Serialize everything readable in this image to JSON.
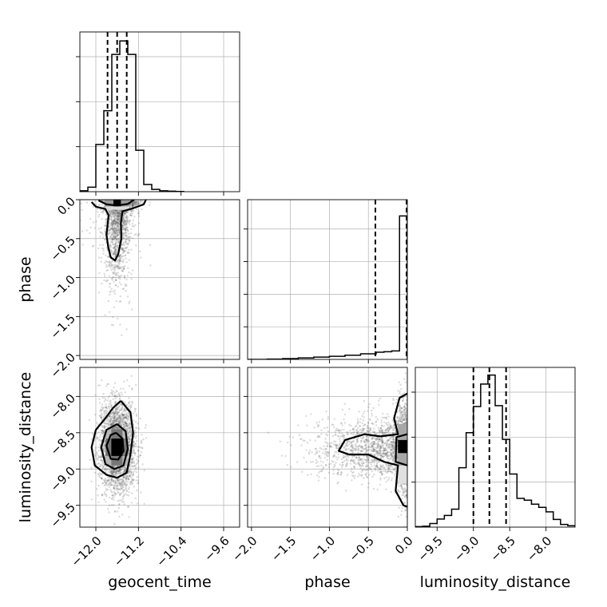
{
  "chart_data": {
    "type": "corner",
    "parameters": [
      "geocent_time",
      "phase",
      "luminosity_distance"
    ],
    "panels": [
      {
        "id": "geocent_time-hist",
        "type": "histogram",
        "xlabel": "geocent_time",
        "xlim": [
          -12.3,
          -9.3
        ],
        "xticks": [
          -12.0,
          -11.2,
          -10.4,
          -9.6
        ],
        "xtick_labels": [
          "−12.0",
          "−11.2",
          "−10.4",
          "−9.6"
        ],
        "bin_edges": [
          -12.3,
          -12.15,
          -12.0,
          -11.85,
          -11.7,
          -11.55,
          -11.4,
          -11.25,
          -11.1,
          -10.95,
          -10.8,
          -10.65,
          -10.5,
          -10.35
        ],
        "values": [
          2,
          10,
          105,
          180,
          305,
          335,
          305,
          92,
          16,
          5,
          2,
          1,
          0.5
        ],
        "ymax": 355,
        "yticks": [
          100,
          200,
          300
        ],
        "quantiles": [
          -11.78,
          -11.6,
          -11.42
        ]
      },
      {
        "id": "phase-hist",
        "type": "histogram",
        "xlabel": "phase",
        "xlim": [
          -2.05,
          0
        ],
        "xticks": [
          -2.0,
          -1.5,
          -1.0,
          -0.5,
          0.0
        ],
        "xtick_labels": [
          "−2.0",
          "−1.5",
          "−1.0",
          "−0.5",
          "0.0"
        ],
        "bin_edges": [
          -2.05,
          -1.8,
          -1.6,
          -1.4,
          -1.2,
          -1.0,
          -0.8,
          -0.6,
          -0.4,
          -0.3,
          -0.2,
          -0.1,
          0.0
        ],
        "values": [
          0,
          2,
          5,
          9,
          14,
          19,
          26,
          34,
          44,
          47,
          52,
          880
        ],
        "ymax": 980,
        "yticks": [
          200,
          400,
          600,
          800
        ],
        "quantiles": [
          -0.41,
          -0.01
        ]
      },
      {
        "id": "luminosity_distance-hist",
        "type": "histogram",
        "xlabel": "luminosity_distance",
        "xlim": [
          -9.8,
          -7.6
        ],
        "xticks": [
          -9.5,
          -9.0,
          -8.5,
          -8.0
        ],
        "xtick_labels": [
          "−9.5",
          "−9.0",
          "−8.5",
          "−8.0"
        ],
        "bin_edges": [
          -9.8,
          -9.7,
          -9.6,
          -9.5,
          -9.4,
          -9.3,
          -9.2,
          -9.1,
          -9.0,
          -8.9,
          -8.8,
          -8.7,
          -8.6,
          -8.5,
          -8.4,
          -8.3,
          -8.2,
          -8.1,
          -8.0,
          -7.9,
          -7.8,
          -7.7,
          -7.6
        ],
        "values": [
          1,
          2,
          8,
          18,
          26,
          40,
          132,
          210,
          268,
          318,
          338,
          270,
          195,
          118,
          64,
          60,
          51,
          44,
          34,
          17,
          6,
          3
        ],
        "ymax": 355,
        "yticks": [
          100,
          200,
          300
        ],
        "quantiles": [
          -9.0,
          -8.78,
          -8.55
        ]
      },
      {
        "id": "geocent_time-vs-phase",
        "type": "scatter-contour",
        "x_param": "geocent_time",
        "y_param": "phase",
        "xlim": [
          -12.3,
          -9.3
        ],
        "ylim": [
          -2.05,
          0
        ],
        "yticks": [
          0.0,
          -0.5,
          -1.0,
          -1.5,
          -2.0
        ],
        "ytick_labels": [
          "0.0",
          "−0.5",
          "−1.0",
          "−1.5",
          "−2.0"
        ],
        "ylabel": "phase",
        "point_clouds": [
          {
            "n": 1050,
            "x_mean": -11.6,
            "x_sd": 0.12,
            "y_abs_mean": 0,
            "y_abs_sd": 0.52
          },
          {
            "n": 160,
            "x_mean": -11.6,
            "x_sd": 0.3,
            "y_abs_mean": 0,
            "y_abs_sd": 0.45
          },
          {
            "n": 850,
            "x_mean": -11.55,
            "x_sd": 0.16,
            "y_abs_mean": 0,
            "y_abs_sd": 0.06
          }
        ],
        "density_cells": [
          {
            "x": [
              -11.67,
              -11.53
            ],
            "y": [
              -0.085,
              0
            ],
            "shade": "#000000"
          },
          {
            "x": [
              -11.83,
              -11.67
            ],
            "y": [
              -0.085,
              0
            ],
            "shade": "#9a9a9a"
          },
          {
            "x": [
              -11.53,
              -11.37
            ],
            "y": [
              -0.085,
              0
            ],
            "shade": "#9a9a9a"
          },
          {
            "x": [
              -11.83,
              -11.37
            ],
            "y": [
              -0.13,
              -0.085
            ],
            "shade": "#dcdcdc"
          }
        ],
        "contours": [
          [
            [
              -12.08,
              -0.03
            ],
            [
              -12.0,
              -0.09
            ],
            [
              -11.82,
              -0.12
            ],
            [
              -11.76,
              -0.2
            ],
            [
              -11.8,
              -0.45
            ],
            [
              -11.77,
              -0.6
            ],
            [
              -11.72,
              -0.74
            ],
            [
              -11.64,
              -0.78
            ],
            [
              -11.58,
              -0.7
            ],
            [
              -11.52,
              -0.5
            ],
            [
              -11.53,
              -0.3
            ],
            [
              -11.5,
              -0.15
            ],
            [
              -11.3,
              -0.11
            ],
            [
              -11.1,
              -0.06
            ],
            [
              -11.06,
              0
            ]
          ],
          [
            [
              -11.95,
              -0.01
            ],
            [
              -11.8,
              -0.06
            ],
            [
              -11.6,
              -0.075
            ],
            [
              -11.4,
              -0.055
            ],
            [
              -11.28,
              0
            ]
          ]
        ]
      },
      {
        "id": "geocent_time-vs-luminosity_distance",
        "type": "scatter-contour",
        "x_param": "geocent_time",
        "y_param": "luminosity_distance",
        "xlim": [
          -12.3,
          -9.3
        ],
        "ylim": [
          -9.8,
          -7.6
        ],
        "yticks": [
          -8.0,
          -8.5,
          -9.0,
          -9.5
        ],
        "ytick_labels": [
          "−8.0",
          "−8.5",
          "−9.0",
          "−9.5"
        ],
        "ylabel": "luminosity_distance",
        "point_clouds": [
          {
            "n": 2600,
            "x_mean": -11.6,
            "x_sd": 0.17,
            "y_mean": -8.7,
            "y_sd": 0.32
          }
        ],
        "density_cells": [
          {
            "x": [
              -11.71,
              -11.5
            ],
            "y": [
              -8.82,
              -8.58
            ],
            "shade": "#000000"
          },
          {
            "x": [
              -11.82,
              -11.71
            ],
            "y": [
              -8.82,
              -8.58
            ],
            "shade": "#777777"
          },
          {
            "x": [
              -11.5,
              -11.4
            ],
            "y": [
              -8.82,
              -8.58
            ],
            "shade": "#777777"
          },
          {
            "x": [
              -11.71,
              -11.5
            ],
            "y": [
              -8.58,
              -8.45
            ],
            "shade": "#777777"
          },
          {
            "x": [
              -11.71,
              -11.5
            ],
            "y": [
              -8.95,
              -8.82
            ],
            "shade": "#777777"
          },
          {
            "x": [
              -11.82,
              -11.4
            ],
            "y": [
              -8.95,
              -8.45
            ],
            "shade": "#b8b8b8"
          }
        ],
        "contours": [
          [
            [
              -11.53,
              -8.06
            ],
            [
              -11.35,
              -8.22
            ],
            [
              -11.3,
              -8.5
            ],
            [
              -11.35,
              -8.8
            ],
            [
              -11.42,
              -9.05
            ],
            [
              -11.6,
              -9.12
            ],
            [
              -11.8,
              -9.08
            ],
            [
              -12.02,
              -8.95
            ],
            [
              -12.08,
              -8.7
            ],
            [
              -12.0,
              -8.46
            ],
            [
              -11.82,
              -8.3
            ],
            [
              -11.68,
              -8.16
            ],
            [
              -11.53,
              -8.06
            ]
          ],
          [
            [
              -11.6,
              -8.38
            ],
            [
              -11.44,
              -8.48
            ],
            [
              -11.4,
              -8.72
            ],
            [
              -11.48,
              -8.95
            ],
            [
              -11.65,
              -9.0
            ],
            [
              -11.82,
              -8.93
            ],
            [
              -11.9,
              -8.7
            ],
            [
              -11.8,
              -8.46
            ],
            [
              -11.6,
              -8.38
            ]
          ],
          [
            [
              -11.62,
              -8.5
            ],
            [
              -11.5,
              -8.58
            ],
            [
              -11.48,
              -8.75
            ],
            [
              -11.58,
              -8.87
            ],
            [
              -11.72,
              -8.86
            ],
            [
              -11.8,
              -8.68
            ],
            [
              -11.72,
              -8.53
            ],
            [
              -11.62,
              -8.5
            ]
          ]
        ]
      },
      {
        "id": "phase-vs-luminosity_distance",
        "type": "scatter-contour",
        "x_param": "phase",
        "y_param": "luminosity_distance",
        "xlim": [
          -2.05,
          0
        ],
        "ylim": [
          -9.8,
          -7.6
        ],
        "point_clouds": [
          {
            "n": 1500,
            "x_abs_mean": 0,
            "x_abs_sd": 0.55,
            "y_mean": -8.7,
            "y_sd": 0.22
          },
          {
            "n": 700,
            "x_abs_mean": 0,
            "x_abs_sd": 0.07,
            "y_mean": -8.7,
            "y_sd": 0.35
          }
        ],
        "density_cells": [
          {
            "x": [
              -0.12,
              0
            ],
            "y": [
              -8.78,
              -8.6
            ],
            "shade": "#000000"
          },
          {
            "x": [
              -0.12,
              0
            ],
            "y": [
              -8.6,
              -8.38
            ],
            "shade": "#a8a8a8"
          },
          {
            "x": [
              -0.12,
              0
            ],
            "y": [
              -8.95,
              -8.78
            ],
            "shade": "#a8a8a8"
          },
          {
            "x": [
              -0.12,
              0
            ],
            "y": [
              -9.2,
              -8.95
            ],
            "shade": "#e0e0e0"
          }
        ],
        "contours": [
          [
            [
              0,
              -7.96
            ],
            [
              -0.1,
              -8.02
            ],
            [
              -0.17,
              -8.3
            ],
            [
              -0.12,
              -8.52
            ],
            [
              -0.35,
              -8.55
            ],
            [
              -0.55,
              -8.52
            ],
            [
              -0.8,
              -8.6
            ],
            [
              -0.88,
              -8.75
            ],
            [
              -0.75,
              -8.8
            ],
            [
              -0.5,
              -8.8
            ],
            [
              -0.3,
              -8.9
            ],
            [
              -0.12,
              -8.95
            ],
            [
              -0.15,
              -9.3
            ],
            [
              -0.05,
              -9.5
            ],
            [
              0,
              -9.52
            ]
          ],
          [
            [
              0,
              -8.52
            ],
            [
              -0.14,
              -8.56
            ],
            [
              -0.15,
              -8.9
            ],
            [
              0,
              -8.95
            ]
          ]
        ]
      }
    ]
  }
}
